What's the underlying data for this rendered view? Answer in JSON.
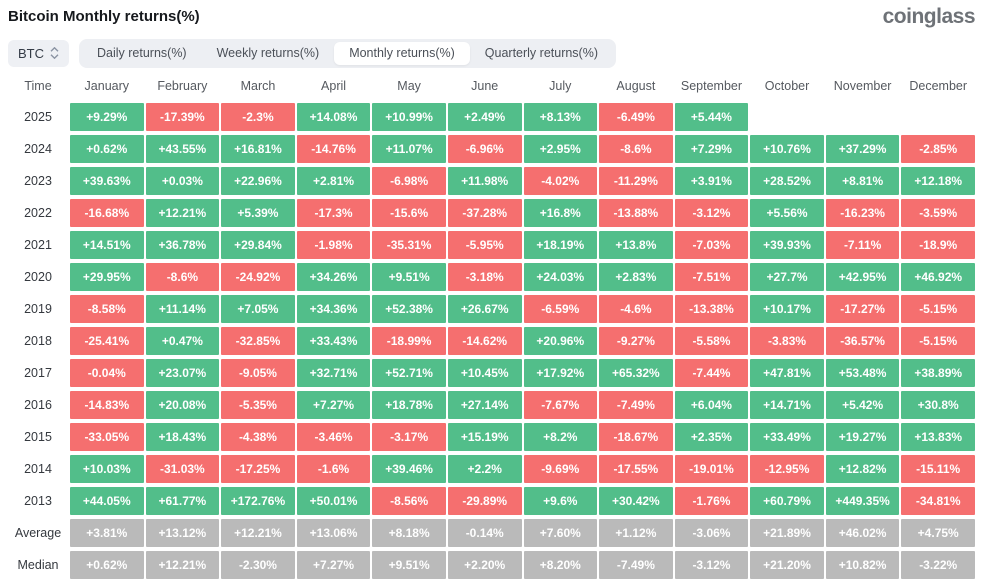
{
  "header": {
    "title": "Bitcoin Monthly returns(%)",
    "logo": "coinglass"
  },
  "controls": {
    "symbol": "BTC",
    "sort_icon": "up-down-arrows",
    "tabs": [
      {
        "label": "Daily returns(%)",
        "active": false
      },
      {
        "label": "Weekly returns(%)",
        "active": false
      },
      {
        "label": "Monthly returns(%)",
        "active": true
      },
      {
        "label": "Quarterly returns(%)",
        "active": false
      }
    ]
  },
  "colors": {
    "positive": "#52be8a",
    "negative": "#f56f6f",
    "neutral": "#bababa"
  },
  "chart_data": {
    "type": "heatmap",
    "title": "Bitcoin Monthly returns(%)",
    "columns": [
      "Time",
      "January",
      "February",
      "March",
      "April",
      "May",
      "June",
      "July",
      "August",
      "September",
      "October",
      "November",
      "December"
    ],
    "rows": [
      {
        "label": "2025",
        "style": "signed",
        "values": [
          "+9.29%",
          "-17.39%",
          "-2.3%",
          "+14.08%",
          "+10.99%",
          "+2.49%",
          "+8.13%",
          "-6.49%",
          "+5.44%",
          "",
          "",
          ""
        ]
      },
      {
        "label": "2024",
        "style": "signed",
        "values": [
          "+0.62%",
          "+43.55%",
          "+16.81%",
          "-14.76%",
          "+11.07%",
          "-6.96%",
          "+2.95%",
          "-8.6%",
          "+7.29%",
          "+10.76%",
          "+37.29%",
          "-2.85%"
        ]
      },
      {
        "label": "2023",
        "style": "signed",
        "values": [
          "+39.63%",
          "+0.03%",
          "+22.96%",
          "+2.81%",
          "-6.98%",
          "+11.98%",
          "-4.02%",
          "-11.29%",
          "+3.91%",
          "+28.52%",
          "+8.81%",
          "+12.18%"
        ]
      },
      {
        "label": "2022",
        "style": "signed",
        "values": [
          "-16.68%",
          "+12.21%",
          "+5.39%",
          "-17.3%",
          "-15.6%",
          "-37.28%",
          "+16.8%",
          "-13.88%",
          "-3.12%",
          "+5.56%",
          "-16.23%",
          "-3.59%"
        ]
      },
      {
        "label": "2021",
        "style": "signed",
        "values": [
          "+14.51%",
          "+36.78%",
          "+29.84%",
          "-1.98%",
          "-35.31%",
          "-5.95%",
          "+18.19%",
          "+13.8%",
          "-7.03%",
          "+39.93%",
          "-7.11%",
          "-18.9%"
        ]
      },
      {
        "label": "2020",
        "style": "signed",
        "values": [
          "+29.95%",
          "-8.6%",
          "-24.92%",
          "+34.26%",
          "+9.51%",
          "-3.18%",
          "+24.03%",
          "+2.83%",
          "-7.51%",
          "+27.7%",
          "+42.95%",
          "+46.92%"
        ]
      },
      {
        "label": "2019",
        "style": "signed",
        "values": [
          "-8.58%",
          "+11.14%",
          "+7.05%",
          "+34.36%",
          "+52.38%",
          "+26.67%",
          "-6.59%",
          "-4.6%",
          "-13.38%",
          "+10.17%",
          "-17.27%",
          "-5.15%"
        ]
      },
      {
        "label": "2018",
        "style": "signed",
        "values": [
          "-25.41%",
          "+0.47%",
          "-32.85%",
          "+33.43%",
          "-18.99%",
          "-14.62%",
          "+20.96%",
          "-9.27%",
          "-5.58%",
          "-3.83%",
          "-36.57%",
          "-5.15%"
        ]
      },
      {
        "label": "2017",
        "style": "signed",
        "values": [
          "-0.04%",
          "+23.07%",
          "-9.05%",
          "+32.71%",
          "+52.71%",
          "+10.45%",
          "+17.92%",
          "+65.32%",
          "-7.44%",
          "+47.81%",
          "+53.48%",
          "+38.89%"
        ]
      },
      {
        "label": "2016",
        "style": "signed",
        "values": [
          "-14.83%",
          "+20.08%",
          "-5.35%",
          "+7.27%",
          "+18.78%",
          "+27.14%",
          "-7.67%",
          "-7.49%",
          "+6.04%",
          "+14.71%",
          "+5.42%",
          "+30.8%"
        ]
      },
      {
        "label": "2015",
        "style": "signed",
        "values": [
          "-33.05%",
          "+18.43%",
          "-4.38%",
          "-3.46%",
          "-3.17%",
          "+15.19%",
          "+8.2%",
          "-18.67%",
          "+2.35%",
          "+33.49%",
          "+19.27%",
          "+13.83%"
        ]
      },
      {
        "label": "2014",
        "style": "signed",
        "values": [
          "+10.03%",
          "-31.03%",
          "-17.25%",
          "-1.6%",
          "+39.46%",
          "+2.2%",
          "-9.69%",
          "-17.55%",
          "-19.01%",
          "-12.95%",
          "+12.82%",
          "-15.11%"
        ]
      },
      {
        "label": "2013",
        "style": "signed",
        "values": [
          "+44.05%",
          "+61.77%",
          "+172.76%",
          "+50.01%",
          "-8.56%",
          "-29.89%",
          "+9.6%",
          "+30.42%",
          "-1.76%",
          "+60.79%",
          "+449.35%",
          "-34.81%"
        ]
      },
      {
        "label": "Average",
        "style": "neutral",
        "values": [
          "+3.81%",
          "+13.12%",
          "+12.21%",
          "+13.06%",
          "+8.18%",
          "-0.14%",
          "+7.60%",
          "+1.12%",
          "-3.06%",
          "+21.89%",
          "+46.02%",
          "+4.75%"
        ]
      },
      {
        "label": "Median",
        "style": "neutral",
        "values": [
          "+0.62%",
          "+12.21%",
          "-2.30%",
          "+7.27%",
          "+9.51%",
          "+2.20%",
          "+8.20%",
          "-7.49%",
          "-3.12%",
          "+21.20%",
          "+10.82%",
          "-3.22%"
        ]
      }
    ]
  }
}
